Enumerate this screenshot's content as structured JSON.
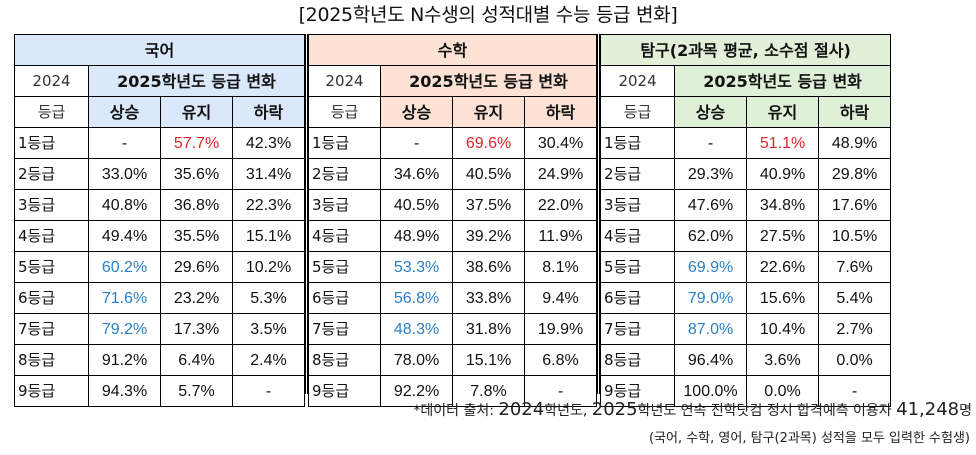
{
  "title": "[2025학년도 N수생의 성적대별 수능 등급 변화]",
  "headers": {
    "year_2024": "2024",
    "grade_2024": "등급",
    "change_2025": "2025학년도 등급 변화",
    "up": "상승",
    "same": "유지",
    "down": "하락"
  },
  "subjects": [
    {
      "name": "국어",
      "rows": [
        {
          "grade": "1등급",
          "up": "-",
          "same": "57.7%",
          "down": "42.3%"
        },
        {
          "grade": "2등급",
          "up": "33.0%",
          "same": "35.6%",
          "down": "31.4%"
        },
        {
          "grade": "3등급",
          "up": "40.8%",
          "same": "36.8%",
          "down": "22.3%"
        },
        {
          "grade": "4등급",
          "up": "49.4%",
          "same": "35.5%",
          "down": "15.1%"
        },
        {
          "grade": "5등급",
          "up": "60.2%",
          "same": "29.6%",
          "down": "10.2%"
        },
        {
          "grade": "6등급",
          "up": "71.6%",
          "same": "23.2%",
          "down": "5.3%"
        },
        {
          "grade": "7등급",
          "up": "79.2%",
          "same": "17.3%",
          "down": "3.5%"
        },
        {
          "grade": "8등급",
          "up": "91.2%",
          "same": "6.4%",
          "down": "2.4%"
        },
        {
          "grade": "9등급",
          "up": "94.3%",
          "same": "5.7%",
          "down": "-"
        }
      ]
    },
    {
      "name": "수학",
      "rows": [
        {
          "grade": "1등급",
          "up": "-",
          "same": "69.6%",
          "down": "30.4%"
        },
        {
          "grade": "2등급",
          "up": "34.6%",
          "same": "40.5%",
          "down": "24.9%"
        },
        {
          "grade": "3등급",
          "up": "40.5%",
          "same": "37.5%",
          "down": "22.0%"
        },
        {
          "grade": "4등급",
          "up": "48.9%",
          "same": "39.2%",
          "down": "11.9%"
        },
        {
          "grade": "5등급",
          "up": "53.3%",
          "same": "38.6%",
          "down": "8.1%"
        },
        {
          "grade": "6등급",
          "up": "56.8%",
          "same": "33.8%",
          "down": "9.4%"
        },
        {
          "grade": "7등급",
          "up": "48.3%",
          "same": "31.8%",
          "down": "19.9%"
        },
        {
          "grade": "8등급",
          "up": "78.0%",
          "same": "15.1%",
          "down": "6.8%"
        },
        {
          "grade": "9등급",
          "up": "92.2%",
          "same": "7.8%",
          "down": "-"
        }
      ]
    },
    {
      "name": "탐구(2과목 평균, 소수점 절사)",
      "rows": [
        {
          "grade": "1등급",
          "up": "-",
          "same": "51.1%",
          "down": "48.9%"
        },
        {
          "grade": "2등급",
          "up": "29.3%",
          "same": "40.9%",
          "down": "29.8%"
        },
        {
          "grade": "3등급",
          "up": "47.6%",
          "same": "34.8%",
          "down": "17.6%"
        },
        {
          "grade": "4등급",
          "up": "62.0%",
          "same": "27.5%",
          "down": "10.5%"
        },
        {
          "grade": "5등급",
          "up": "69.9%",
          "same": "22.6%",
          "down": "7.6%"
        },
        {
          "grade": "6등급",
          "up": "79.0%",
          "same": "15.6%",
          "down": "5.4%"
        },
        {
          "grade": "7등급",
          "up": "87.0%",
          "same": "10.4%",
          "down": "2.7%"
        },
        {
          "grade": "8등급",
          "up": "96.4%",
          "same": "3.6%",
          "down": "0.0%"
        },
        {
          "grade": "9등급",
          "up": "100.0%",
          "same": "0.0%",
          "down": "-"
        }
      ]
    }
  ],
  "footnote": {
    "prefix": "*데이터 출처: ",
    "y2024": "2024",
    "mid1": "학년도, ",
    "y2025": "2025",
    "mid2": "학년도 연속 진학닷컴 정시 합격예측 이용자 ",
    "count": "41,248",
    "suffix": "명",
    "line2": "(국어, 수학, 영어, 탐구(2과목) 성적을 모두 입력한 수험생)"
  },
  "colors": {
    "korean_header": "#dae8fa",
    "math_header": "#fbe2d5",
    "inquiry_header": "#dff0d8",
    "highlight_red": "#e0262b",
    "highlight_blue": "#2c7fc5"
  },
  "highlights": {
    "red_same": "1등급 유지",
    "blue_up_korean": [
      "5등급",
      "6등급",
      "7등급"
    ],
    "blue_up_math": [
      "5등급",
      "6등급",
      "7등급"
    ],
    "blue_up_inquiry": [
      "5등급",
      "6등급",
      "7등급"
    ]
  }
}
